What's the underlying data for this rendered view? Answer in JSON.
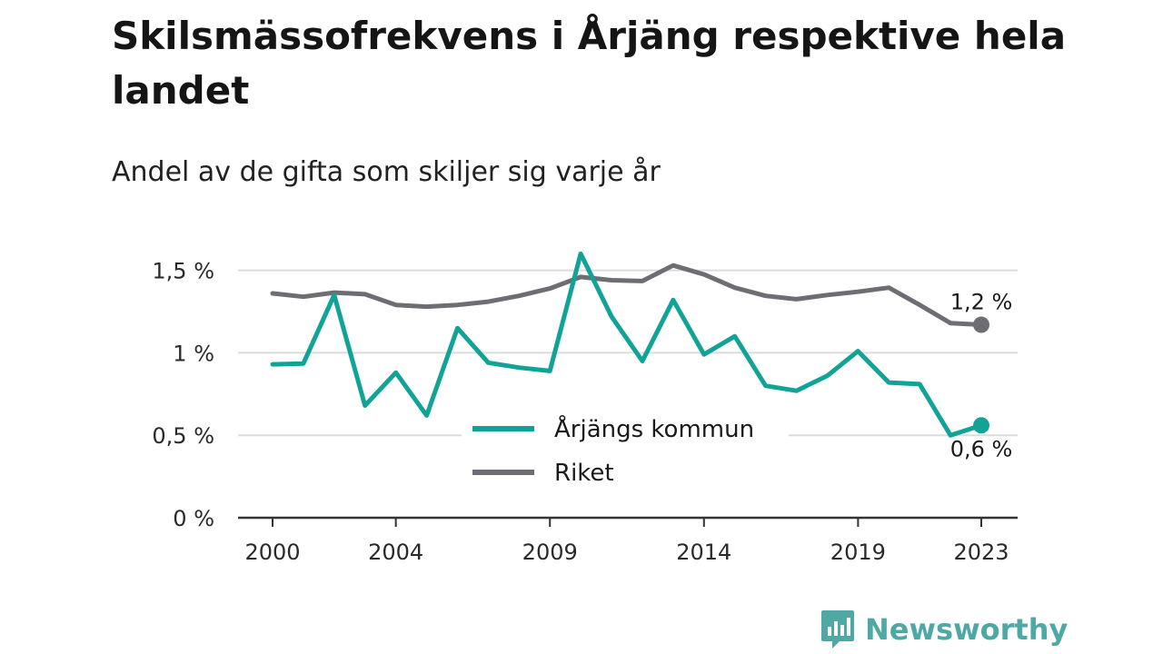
{
  "title": "Skilsmässofrekvens i Årjäng respektive hela landet",
  "subtitle": "Andel av de gifta som skiljer sig varje år",
  "brand": "Newsworthy",
  "colors": {
    "arjang": "#12a397",
    "riket": "#6e6d73",
    "grid": "#dcdcdc",
    "axis": "#333333",
    "brand": "#4ea9a5"
  },
  "chart_data": {
    "type": "line",
    "title": "Skilsmässofrekvens i Årjäng respektive hela landet",
    "subtitle": "Andel av de gifta som skiljer sig varje år",
    "xlabel": "",
    "ylabel": "",
    "x": [
      2000,
      2001,
      2002,
      2003,
      2004,
      2005,
      2006,
      2007,
      2008,
      2009,
      2010,
      2011,
      2012,
      2013,
      2014,
      2015,
      2016,
      2017,
      2018,
      2019,
      2020,
      2021,
      2022,
      2023
    ],
    "x_ticks": [
      2000,
      2004,
      2009,
      2014,
      2019,
      2023
    ],
    "x_tick_labels": [
      "2000",
      "2004",
      "2009",
      "2014",
      "2019",
      "2023"
    ],
    "ylim": [
      0,
      1.6
    ],
    "y_ticks": [
      0,
      0.5,
      1,
      1.5
    ],
    "y_tick_labels": [
      "0 %",
      "0,5 %",
      "1 %",
      "1,5 %"
    ],
    "grid": true,
    "legend_position": "center",
    "series": [
      {
        "name": "Årjängs kommun",
        "color": "#12a397",
        "values": [
          0.93,
          0.935,
          1.35,
          0.68,
          0.88,
          0.62,
          1.15,
          0.94,
          0.91,
          0.89,
          1.6,
          1.22,
          0.95,
          1.32,
          0.99,
          1.1,
          0.8,
          0.77,
          0.86,
          1.01,
          0.82,
          0.81,
          0.5,
          0.56
        ],
        "end_label": "0,6 %"
      },
      {
        "name": "Riket",
        "color": "#6e6d73",
        "values": [
          1.36,
          1.34,
          1.365,
          1.355,
          1.29,
          1.28,
          1.29,
          1.31,
          1.345,
          1.39,
          1.46,
          1.44,
          1.435,
          1.53,
          1.475,
          1.395,
          1.345,
          1.325,
          1.35,
          1.37,
          1.395,
          1.29,
          1.18,
          1.17
        ],
        "end_label": "1,2 %"
      }
    ]
  }
}
